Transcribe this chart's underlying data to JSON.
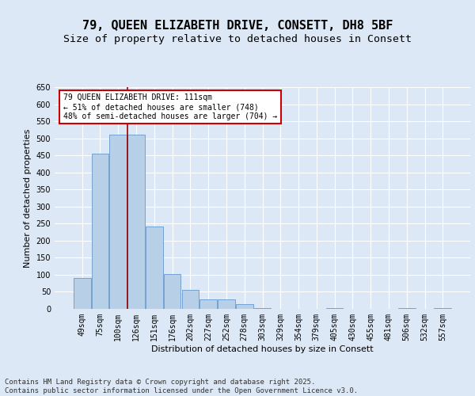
{
  "title1": "79, QUEEN ELIZABETH DRIVE, CONSETT, DH8 5BF",
  "title2": "Size of property relative to detached houses in Consett",
  "xlabel": "Distribution of detached houses by size in Consett",
  "ylabel": "Number of detached properties",
  "categories": [
    "49sqm",
    "75sqm",
    "100sqm",
    "126sqm",
    "151sqm",
    "176sqm",
    "202sqm",
    "227sqm",
    "252sqm",
    "278sqm",
    "303sqm",
    "329sqm",
    "354sqm",
    "379sqm",
    "405sqm",
    "430sqm",
    "455sqm",
    "481sqm",
    "506sqm",
    "532sqm",
    "557sqm"
  ],
  "values": [
    90,
    455,
    510,
    510,
    242,
    103,
    55,
    28,
    28,
    13,
    2,
    0,
    0,
    0,
    2,
    0,
    0,
    0,
    2,
    0,
    2
  ],
  "bar_color": "#b8cfe8",
  "bar_edge_color": "#6699cc",
  "vline_x": 2.5,
  "annotation_text": "79 QUEEN ELIZABETH DRIVE: 111sqm\n← 51% of detached houses are smaller (748)\n48% of semi-detached houses are larger (704) →",
  "annotation_box_color": "white",
  "annotation_box_edge_color": "#cc0000",
  "ylim": [
    0,
    650
  ],
  "yticks": [
    0,
    50,
    100,
    150,
    200,
    250,
    300,
    350,
    400,
    450,
    500,
    550,
    600,
    650
  ],
  "background_color": "#dce8f5",
  "grid_color": "white",
  "footer": "Contains HM Land Registry data © Crown copyright and database right 2025.\nContains public sector information licensed under the Open Government Licence v3.0.",
  "title_fontsize": 11,
  "subtitle_fontsize": 9.5,
  "label_fontsize": 8,
  "tick_fontsize": 7,
  "footer_fontsize": 6.5,
  "ann_fontsize": 7
}
